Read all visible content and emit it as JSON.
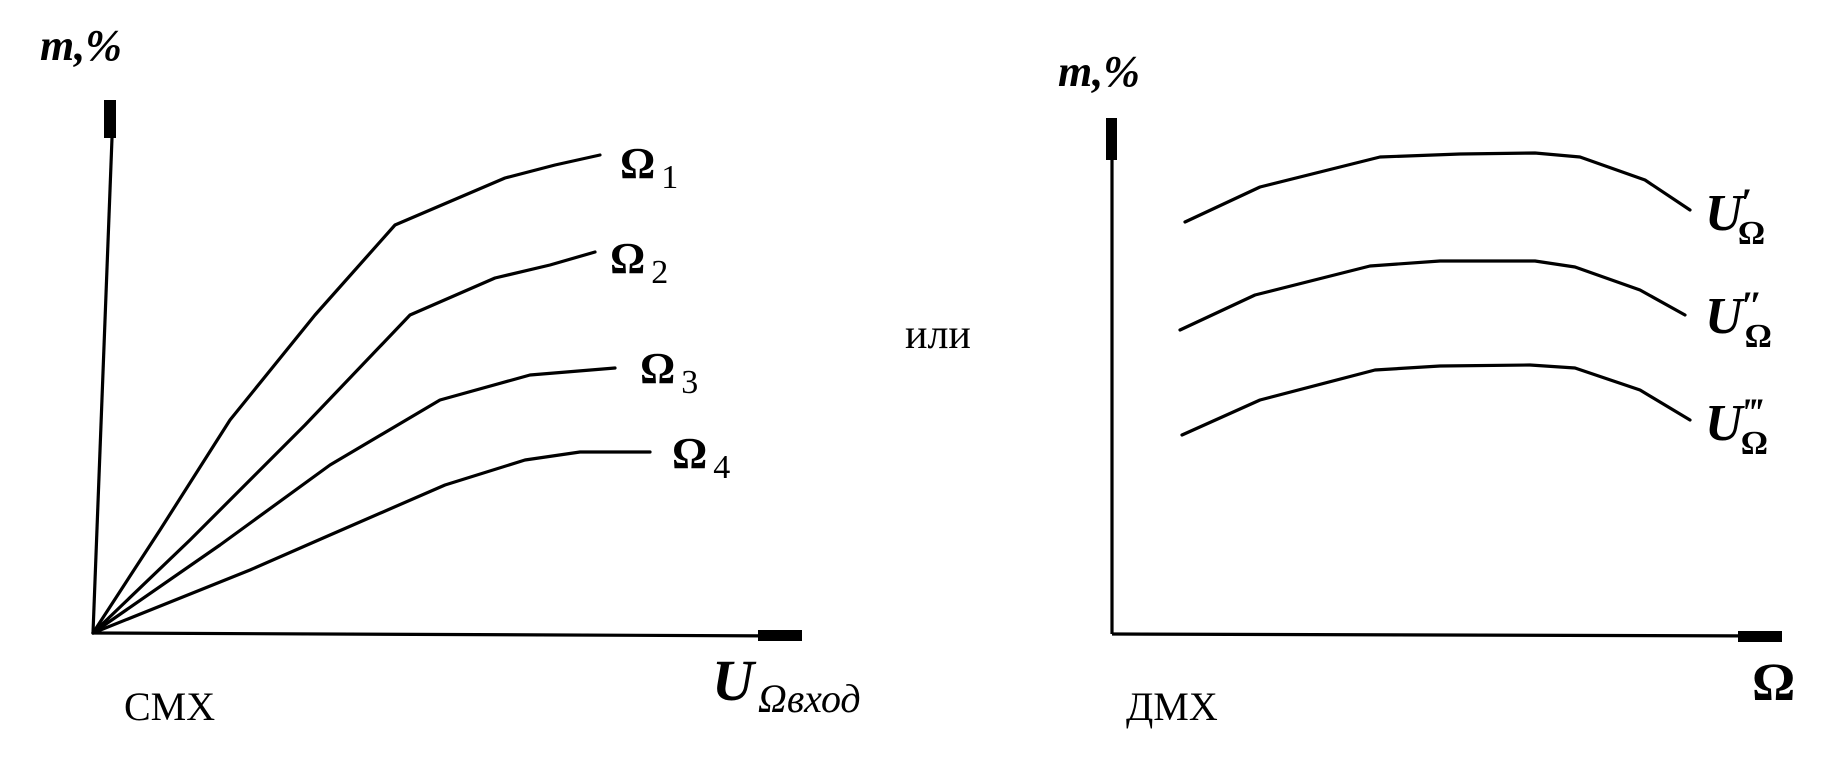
{
  "chart_data": [
    {
      "type": "line",
      "caption": "СМХ",
      "ylabel": "m,%",
      "xlabel": {
        "main": "U",
        "sub": "Ωвход"
      },
      "series": [
        {
          "name": "Ω",
          "sub": "1"
        },
        {
          "name": "Ω",
          "sub": "2"
        },
        {
          "name": "Ω",
          "sub": "3"
        },
        {
          "name": "Ω",
          "sub": "4"
        }
      ]
    },
    {
      "type": "line",
      "caption": "ДМХ",
      "ylabel": "m,%",
      "xlabel": {
        "main": "Ω",
        "sub": ""
      },
      "series": [
        {
          "name": "U",
          "prime": "′",
          "sub": "Ω"
        },
        {
          "name": "U",
          "prime": "″",
          "sub": "Ω"
        },
        {
          "name": "U",
          "prime": "‴",
          "sub": "Ω"
        }
      ]
    }
  ],
  "separator": "или"
}
